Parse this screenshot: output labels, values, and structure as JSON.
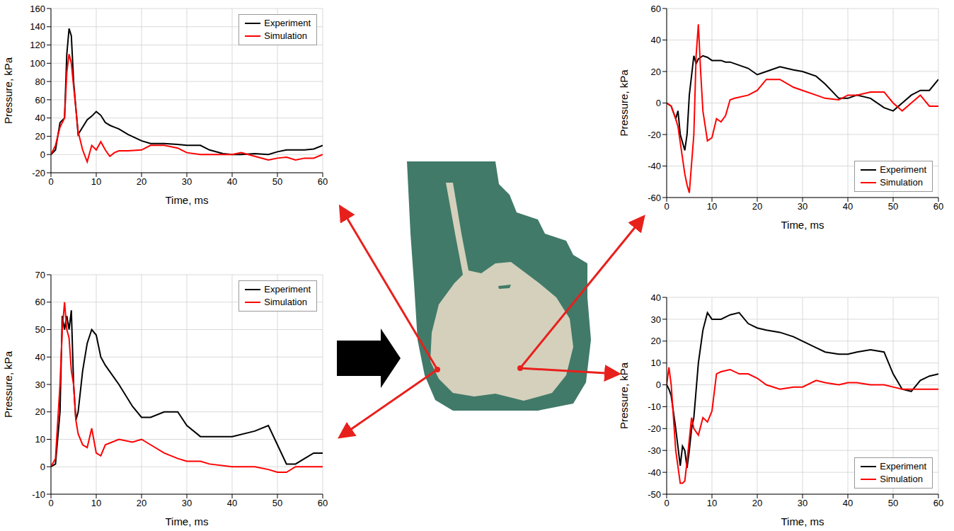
{
  "chart_data": [
    {
      "type": "line",
      "xlabel": "Time, ms",
      "ylabel": "Pressure, kPa",
      "xlim": [
        0,
        60
      ],
      "xticks": [
        0,
        10,
        20,
        30,
        40,
        50,
        60
      ],
      "ylim": [
        -20,
        160
      ],
      "yticks": [
        -20,
        0,
        20,
        40,
        60,
        80,
        100,
        120,
        140,
        160
      ],
      "grid": true,
      "legend": "upper right",
      "x": [
        0,
        1,
        2,
        3,
        3.5,
        4,
        4.5,
        5,
        6,
        7,
        8,
        9,
        10,
        11,
        12,
        13,
        14,
        15,
        17,
        20,
        22,
        25,
        28,
        30,
        33,
        35,
        38,
        40,
        42,
        45,
        48,
        50,
        52,
        54,
        56,
        58,
        60
      ],
      "series": [
        {
          "name": "Experiment",
          "color": "#000000",
          "values": [
            0,
            5,
            35,
            40,
            110,
            138,
            130,
            80,
            22,
            30,
            38,
            42,
            47,
            43,
            35,
            32,
            30,
            28,
            22,
            15,
            12,
            12,
            11,
            10,
            10,
            5,
            1,
            0,
            0,
            1,
            0,
            3,
            5,
            5,
            5,
            6,
            10
          ]
        },
        {
          "name": "Simulation",
          "color": "#ff0000",
          "values": [
            0,
            10,
            30,
            40,
            90,
            110,
            100,
            75,
            25,
            5,
            -8,
            10,
            5,
            14,
            5,
            -2,
            2,
            4,
            4,
            5,
            10,
            10,
            7,
            2,
            0,
            0,
            0,
            0,
            2,
            -2,
            -6,
            -4,
            -3,
            -6,
            -4,
            -4,
            0
          ]
        }
      ]
    },
    {
      "type": "line",
      "xlabel": "Time, ms",
      "ylabel": "Pressure, kPa",
      "xlim": [
        0,
        60
      ],
      "xticks": [
        0,
        10,
        20,
        30,
        40,
        50,
        60
      ],
      "ylim": [
        -60,
        60
      ],
      "yticks": [
        -60,
        -40,
        -20,
        0,
        20,
        40,
        60
      ],
      "grid": true,
      "legend": "lower right",
      "x": [
        0,
        1,
        2,
        2.5,
        3,
        4,
        4.5,
        5,
        6,
        6.5,
        7,
        7.5,
        8,
        9,
        10,
        11,
        12,
        13,
        14,
        15,
        18,
        20,
        22,
        25,
        28,
        30,
        33,
        35,
        38,
        40,
        42,
        45,
        48,
        50,
        52,
        54,
        56,
        58,
        60
      ],
      "series": [
        {
          "name": "Experiment",
          "color": "#000000",
          "values": [
            0,
            -2,
            -10,
            -5,
            -20,
            -30,
            -20,
            5,
            30,
            25,
            28,
            29,
            30,
            29,
            27,
            27,
            27,
            26,
            26,
            25,
            22,
            18,
            20,
            23,
            21,
            20,
            17,
            12,
            3,
            3,
            5,
            3,
            -3,
            -5,
            0,
            5,
            8,
            8,
            15
          ]
        },
        {
          "name": "Simulation",
          "color": "#ff0000",
          "values": [
            0,
            -2,
            -10,
            -15,
            -25,
            -45,
            -52,
            -57,
            -20,
            30,
            50,
            20,
            -5,
            -24,
            -22,
            -10,
            -12,
            -8,
            2,
            3,
            5,
            8,
            15,
            15,
            10,
            8,
            5,
            3,
            2,
            5,
            5,
            7,
            7,
            0,
            -5,
            0,
            5,
            -2,
            -2
          ]
        }
      ]
    },
    {
      "type": "line",
      "xlabel": "Time, ms",
      "ylabel": "Pressure, kPa",
      "xlim": [
        0,
        60
      ],
      "xticks": [
        0,
        10,
        20,
        30,
        40,
        50,
        60
      ],
      "ylim": [
        -10,
        70
      ],
      "yticks": [
        -10,
        0,
        10,
        20,
        30,
        40,
        50,
        60,
        70
      ],
      "grid": true,
      "legend": "upper right",
      "x": [
        0,
        1,
        2,
        2.5,
        3,
        3.5,
        4,
        4.5,
        5,
        5.5,
        6,
        7,
        8,
        9,
        10,
        11,
        12,
        15,
        18,
        20,
        22,
        25,
        28,
        30,
        33,
        35,
        40,
        45,
        48,
        50,
        52,
        54,
        56,
        58,
        60
      ],
      "series": [
        {
          "name": "Experiment",
          "color": "#000000",
          "values": [
            0,
            1,
            20,
            55,
            50,
            55,
            50,
            57,
            30,
            17,
            20,
            35,
            45,
            50,
            48,
            40,
            37,
            30,
            22,
            18,
            18,
            20,
            20,
            15,
            11,
            11,
            11,
            13,
            15,
            8,
            1,
            1,
            3,
            5,
            5
          ]
        },
        {
          "name": "Simulation",
          "color": "#ff0000",
          "values": [
            0,
            3,
            30,
            50,
            60,
            50,
            47,
            35,
            30,
            17,
            12,
            8,
            7,
            14,
            5,
            4,
            8,
            10,
            9,
            10,
            8,
            5,
            3,
            2,
            2,
            1,
            0,
            0,
            -1,
            -2,
            -2,
            0,
            0,
            0,
            0
          ]
        }
      ]
    },
    {
      "type": "line",
      "xlabel": "Time, ms",
      "ylabel": "Pressure, kPa",
      "xlim": [
        0,
        60
      ],
      "xticks": [
        0,
        10,
        20,
        30,
        40,
        50,
        60
      ],
      "ylim": [
        -50,
        40
      ],
      "yticks": [
        -50,
        -40,
        -30,
        -20,
        -10,
        0,
        10,
        20,
        30,
        40
      ],
      "grid": true,
      "legend": "lower right",
      "x": [
        0,
        0.5,
        1,
        2,
        3,
        3.5,
        4,
        4.5,
        5,
        5.5,
        6,
        7,
        8,
        9,
        10,
        11,
        12,
        14,
        16,
        18,
        20,
        22,
        25,
        28,
        30,
        33,
        35,
        38,
        40,
        42,
        45,
        48,
        50,
        52,
        54,
        56,
        58,
        60
      ],
      "series": [
        {
          "name": "Experiment",
          "color": "#000000",
          "values": [
            0,
            -2,
            -5,
            -20,
            -37,
            -28,
            -30,
            -38,
            -30,
            -20,
            -15,
            10,
            25,
            33,
            30,
            30,
            30,
            32,
            33,
            28,
            26,
            25,
            24,
            22,
            20,
            17,
            15,
            14,
            14,
            15,
            16,
            15,
            5,
            -2,
            -3,
            2,
            4,
            5
          ]
        },
        {
          "name": "Simulation",
          "color": "#ff0000",
          "values": [
            0,
            8,
            0,
            -30,
            -45,
            -45,
            -44,
            -35,
            -25,
            -15,
            -20,
            -23,
            -15,
            -17,
            -12,
            5,
            6,
            7,
            5,
            5,
            3,
            0,
            -2,
            -1,
            -1,
            2,
            1,
            0,
            1,
            1,
            0,
            0,
            -1,
            -2,
            -2,
            -2,
            -2,
            -2
          ]
        }
      ]
    }
  ]
}
